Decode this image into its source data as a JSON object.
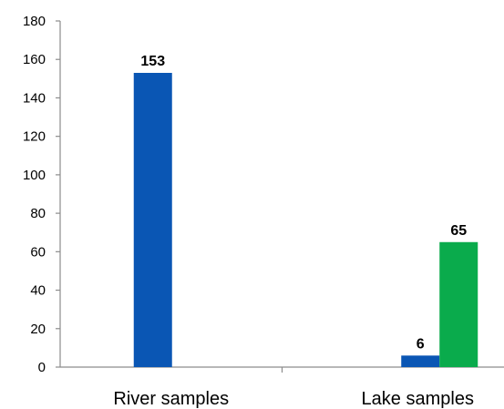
{
  "chart_data": {
    "type": "bar",
    "categories": [
      "River samples",
      "Lake samples"
    ],
    "series": [
      {
        "values": [
          153,
          6
        ],
        "color": "#0a56b4"
      },
      {
        "values": [
          null,
          65
        ],
        "color": "#0aab4c"
      }
    ],
    "ylim": [
      0,
      180
    ],
    "yticks": [
      0,
      20,
      40,
      60,
      80,
      100,
      120,
      140,
      160,
      180
    ],
    "title": "",
    "xlabel": "",
    "ylabel": "",
    "grid": false,
    "legend": "none"
  }
}
